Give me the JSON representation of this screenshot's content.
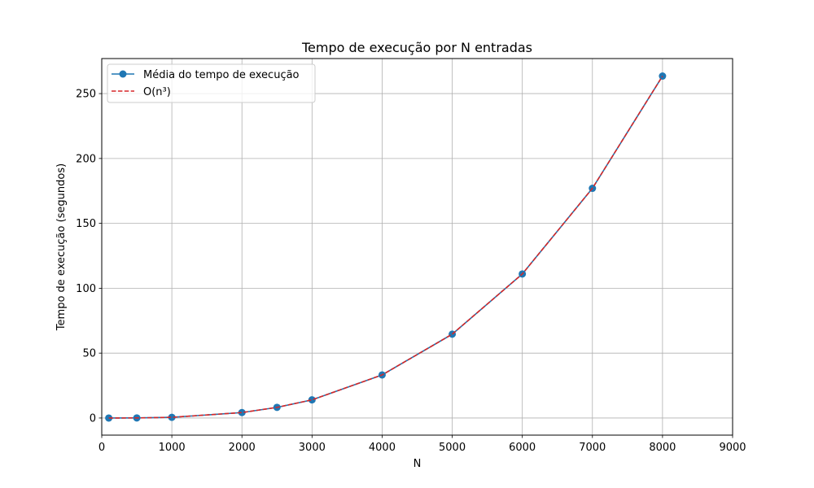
{
  "chart_data": {
    "type": "line",
    "title": "Tempo de execução por N entradas",
    "xlabel": "N",
    "ylabel": "Tempo de execução (segundos)",
    "xlim": [
      0,
      9000
    ],
    "ylim": [
      -13.2,
      277
    ],
    "xticks": [
      0,
      1000,
      2000,
      3000,
      4000,
      5000,
      6000,
      7000,
      8000,
      9000
    ],
    "yticks": [
      0,
      50,
      100,
      150,
      200,
      250
    ],
    "grid": true,
    "legend_position": "top-left",
    "series": [
      {
        "name": "Média do tempo de execução",
        "color": "#1f77b4",
        "style": "solid",
        "marker": "circle",
        "x": [
          100,
          500,
          1000,
          2000,
          2500,
          3000,
          4000,
          5000,
          6000,
          7000,
          8000
        ],
        "y": [
          0.0,
          0.07,
          0.52,
          4.2,
          8.2,
          14.0,
          33.2,
          64.6,
          111.0,
          177.0,
          263.5
        ]
      },
      {
        "name": "O(n³)",
        "color": "#d62728",
        "style": "dashed",
        "marker": "none",
        "x": [
          100,
          500,
          1000,
          2000,
          2500,
          3000,
          4000,
          5000,
          6000,
          7000,
          8000
        ],
        "y": [
          0.0,
          0.07,
          0.52,
          4.2,
          8.2,
          14.0,
          33.2,
          64.6,
          111.0,
          177.0,
          263.5
        ]
      }
    ]
  }
}
